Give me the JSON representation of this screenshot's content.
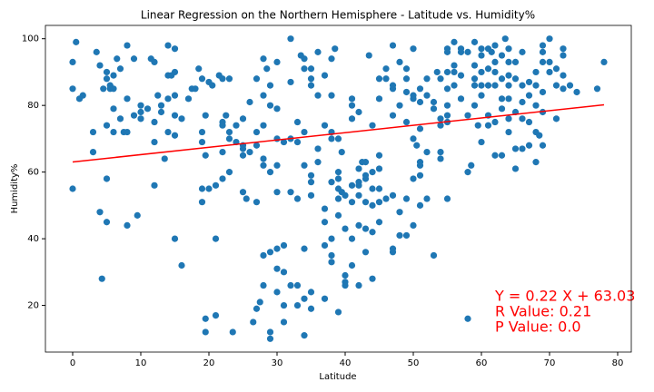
{
  "chart_data": {
    "type": "scatter",
    "title": "Linear Regression on the Northern Hemisphere - Latitude vs. Humidity%",
    "x_label": "Latitude",
    "y_label": "Humidity%",
    "xlim": [
      -4,
      82
    ],
    "ylim": [
      6,
      104
    ],
    "xticks": [
      0,
      10,
      20,
      30,
      40,
      50,
      60,
      70,
      80
    ],
    "yticks": [
      20,
      40,
      60,
      80,
      100
    ],
    "x": [
      0,
      0,
      0,
      0.5,
      1,
      1.5,
      3,
      3,
      3.5,
      4,
      4,
      4.3,
      4.5,
      5,
      5,
      5,
      5,
      5,
      5.5,
      5.5,
      6,
      6,
      6,
      6,
      6.5,
      7,
      7,
      7.5,
      8,
      8,
      8,
      8,
      9,
      9,
      9.5,
      10,
      10,
      10,
      11,
      11.5,
      12,
      12,
      12,
      12,
      12.5,
      13,
      13,
      13.5,
      14,
      14,
      14,
      14,
      14.5,
      15,
      15,
      15,
      15,
      15,
      15,
      16,
      16,
      17,
      17.5,
      18,
      18.5,
      19,
      19,
      19,
      19,
      19,
      19.5,
      19.5,
      19.5,
      19.5,
      20,
      20,
      20.5,
      21,
      21,
      21,
      21.5,
      22,
      22,
      22,
      22,
      22,
      22.5,
      23,
      23,
      23,
      23,
      23.5,
      24,
      24,
      25,
      25,
      25,
      25,
      25,
      25.5,
      26,
      26,
      27,
      27,
      27,
      27,
      26.5,
      27,
      27.5,
      28,
      28,
      28,
      28,
      28,
      28,
      28,
      28.5,
      29,
      29,
      29,
      29,
      29,
      29,
      30,
      30,
      30,
      30,
      30,
      30,
      30,
      30,
      31,
      31,
      31,
      31,
      31,
      32,
      32,
      32,
      32,
      32,
      33,
      33,
      33,
      33,
      33,
      33.5,
      34,
      34,
      34,
      34,
      34,
      34,
      34,
      35,
      35,
      35,
      35,
      35,
      35,
      35,
      35,
      36,
      36,
      36,
      36,
      37,
      37,
      37,
      37,
      37,
      37,
      38,
      38,
      38,
      38,
      38,
      38,
      38,
      38,
      38.5,
      39,
      39,
      39,
      39,
      39,
      39,
      39,
      39.5,
      39.5,
      40,
      40,
      40,
      40,
      40,
      41,
      41,
      41,
      41,
      41,
      41,
      41,
      42,
      42,
      42,
      42,
      42,
      42,
      42,
      42.5,
      43,
      43,
      43,
      43,
      43,
      43,
      43.5,
      44,
      44,
      44,
      44,
      44,
      44,
      45,
      45,
      45,
      45,
      45,
      45,
      45,
      46,
      46,
      46,
      47,
      47,
      47,
      47,
      47,
      47,
      47,
      48,
      48,
      48,
      48,
      49,
      49,
      49,
      49,
      49,
      49,
      50,
      50,
      50,
      50,
      50,
      50,
      50.5,
      51,
      51,
      51,
      51,
      51,
      51,
      51,
      52,
      52,
      52,
      52,
      53,
      53,
      53,
      53.5,
      54,
      54,
      54,
      54,
      54,
      55,
      55,
      55,
      55,
      55,
      55,
      55,
      55,
      56,
      56,
      56,
      56,
      57,
      57,
      57,
      57,
      58,
      58,
      58,
      58,
      58.5,
      59,
      59,
      59,
      59,
      59,
      59.5,
      60,
      60,
      60,
      60,
      60,
      60,
      61,
      61,
      61,
      61,
      61,
      61.5,
      62,
      62,
      62,
      62,
      62,
      62,
      63,
      63,
      63,
      63,
      63,
      63.5,
      64,
      64,
      64,
      64,
      64,
      64,
      64,
      65,
      65,
      65,
      65,
      65,
      66,
      66,
      66,
      66,
      66,
      67,
      67,
      67,
      67,
      68,
      68,
      68,
      68,
      68,
      68.5,
      69,
      69,
      69,
      69,
      69,
      69,
      70,
      70,
      70,
      71,
      71,
      71,
      72,
      72,
      72,
      72,
      73,
      74,
      77,
      78
    ],
    "series": [
      {
        "color": "#1f77b4",
        "values": [
          93,
          85,
          55,
          99,
          82,
          83,
          72,
          66,
          96,
          92,
          48,
          28,
          85,
          90,
          88,
          74,
          58,
          45,
          86,
          85,
          89,
          85,
          79,
          72,
          94,
          91,
          76,
          72,
          72,
          82,
          98,
          44,
          94,
          77,
          47,
          80,
          78,
          76,
          79,
          94,
          93,
          75,
          69,
          56,
          83,
          80,
          78,
          64,
          98,
          89,
          82,
          72,
          89,
          97,
          90,
          83,
          77,
          71,
          40,
          76,
          32,
          82,
          85,
          85,
          91,
          88,
          72,
          69,
          55,
          51,
          77,
          65,
          16,
          12,
          87,
          55,
          86,
          56,
          40,
          17,
          89,
          88,
          75,
          74,
          66,
          58,
          77,
          88,
          72,
          70,
          60,
          12,
          74,
          69,
          76,
          68,
          67,
          65,
          54,
          52,
          81,
          66,
          88,
          72,
          68,
          51,
          15,
          19,
          21,
          94,
          83,
          74,
          64,
          62,
          35,
          26,
          91,
          86,
          80,
          60,
          36,
          12,
          10,
          93,
          79,
          70,
          62,
          54,
          37,
          31,
          24,
          69,
          38,
          30,
          20,
          15,
          100,
          87,
          70,
          54,
          26,
          75,
          69,
          52,
          26,
          20,
          95,
          94,
          91,
          72,
          62,
          37,
          22,
          11,
          91,
          88,
          86,
          59,
          57,
          53,
          24,
          19,
          96,
          83,
          67,
          63,
          89,
          74,
          49,
          45,
          38,
          22,
          94,
          83,
          72,
          70,
          57,
          40,
          35,
          33,
          97,
          70,
          60,
          58,
          55,
          52,
          47,
          18,
          66,
          54,
          53,
          43,
          29,
          27,
          26,
          82,
          80,
          76,
          56,
          51,
          40,
          32,
          78,
          61,
          57,
          56,
          53,
          44,
          26,
          63,
          63,
          59,
          58,
          51,
          43,
          36,
          95,
          74,
          60,
          55,
          50,
          42,
          28,
          88,
          82,
          65,
          61,
          55,
          51,
          45,
          91,
          88,
          52,
          98,
          86,
          85,
          77,
          53,
          37,
          36,
          93,
          80,
          48,
          41,
          91,
          88,
          84,
          75,
          52,
          41,
          97,
          83,
          82,
          70,
          58,
          44,
          68,
          85,
          81,
          73,
          63,
          62,
          59,
          50,
          88,
          83,
          66,
          52,
          81,
          79,
          35,
          90,
          88,
          76,
          74,
          66,
          64,
          97,
          96,
          90,
          85,
          80,
          77,
          75,
          52,
          99,
          92,
          90,
          86,
          97,
          96,
          89,
          82,
          96,
          77,
          60,
          16,
          62,
          99,
          92,
          88,
          86,
          80,
          74,
          97,
          95,
          90,
          86,
          83,
          69,
          97,
          91,
          86,
          77,
          74,
          96,
          98,
          93,
          90,
          86,
          75,
          65,
          95,
          88,
          82,
          79,
          65,
          100,
          97,
          93,
          89,
          86,
          82,
          76,
          72,
          93,
          88,
          78,
          67,
          61,
          96,
          86,
          81,
          76,
          67,
          87,
          83,
          68,
          75,
          90,
          86,
          80,
          72,
          63,
          71,
          98,
          96,
          93,
          84,
          78,
          68,
          100,
          93,
          90,
          91,
          86,
          76,
          97,
          95,
          89,
          85,
          86,
          84,
          85,
          93
        ]
      }
    ],
    "regression": {
      "color": "red",
      "x": [
        0,
        78
      ],
      "y": [
        63.03,
        80.19
      ]
    },
    "annotations": [
      "Y = 0.22 X + 63.03",
      "R Value: 0.21",
      "P Value: 0.0"
    ],
    "annotation_color": "red"
  }
}
